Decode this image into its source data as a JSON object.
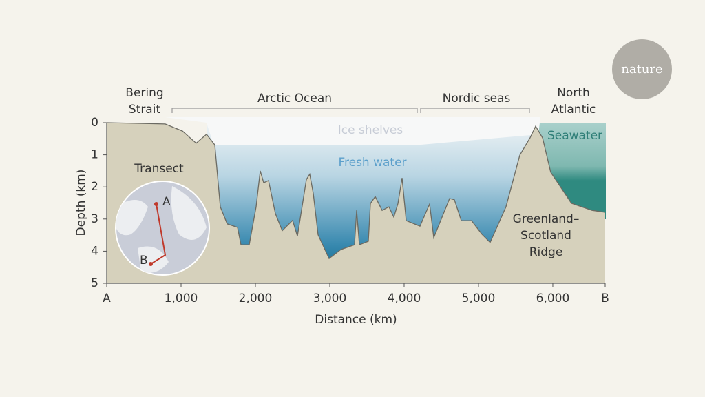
{
  "chart_data": {
    "type": "area",
    "x_label": "Distance (km)",
    "y_label": "Depth (km)",
    "color": "#d6d1bc",
    "x": [
      0,
      787,
      1019,
      1204,
      1343,
      1454,
      1528,
      1620,
      1759,
      1806,
      1917,
      2009,
      2065,
      2111,
      2176,
      2269,
      2361,
      2500,
      2565,
      2685,
      2731,
      2778,
      2843,
      2991,
      3148,
      3333,
      3361,
      3398,
      3519,
      3546,
      3611,
      3704,
      3796,
      3861,
      3917,
      3972,
      4028,
      4213,
      4343,
      4398,
      4491,
      4611,
      4676,
      4769,
      4907,
      5046,
      5157,
      5370,
      5556,
      5694,
      5769,
      5861,
      5972,
      6250,
      6528,
      6704
    ],
    "values": [
      0,
      0.04,
      0.26,
      0.64,
      0.36,
      0.69,
      2.62,
      3.15,
      3.26,
      3.8,
      3.8,
      2.62,
      1.5,
      1.87,
      1.8,
      2.83,
      3.36,
      3.04,
      3.53,
      1.77,
      1.6,
      2.2,
      3.49,
      4.23,
      3.95,
      3.8,
      2.73,
      3.8,
      3.69,
      2.52,
      2.3,
      2.73,
      2.62,
      2.94,
      2.52,
      1.72,
      3.05,
      3.22,
      2.53,
      3.58,
      3.05,
      2.36,
      2.4,
      3.05,
      3.05,
      3.47,
      3.73,
      2.62,
      1.01,
      0.47,
      0.11,
      0.47,
      1.54,
      2.51,
      2.73,
      2.79
    ],
    "xlim": [
      0,
      6704
    ],
    "ylim": [
      5,
      0
    ],
    "xticks": [
      {
        "value": 0,
        "label": "A"
      },
      {
        "value": 1000,
        "label": "1,000"
      },
      {
        "value": 2000,
        "label": "2,000"
      },
      {
        "value": 3000,
        "label": "3,000"
      },
      {
        "value": 4000,
        "label": "4,000"
      },
      {
        "value": 5000,
        "label": "5,000"
      },
      {
        "value": 6000,
        "label": "6,000"
      },
      {
        "value": 6704,
        "label": "B"
      }
    ],
    "yticks": [
      0,
      1,
      2,
      3,
      4,
      5
    ],
    "annotations": [
      "Bering Strait",
      "Arctic Ocean",
      "Nordic seas",
      "North Atlantic",
      "Ice shelves",
      "Fresh water",
      "Seawater",
      "Greenland–Scotland Ridge"
    ],
    "inset": {
      "title": "Transect",
      "start": "A",
      "end": "B"
    },
    "logo": "nature"
  }
}
